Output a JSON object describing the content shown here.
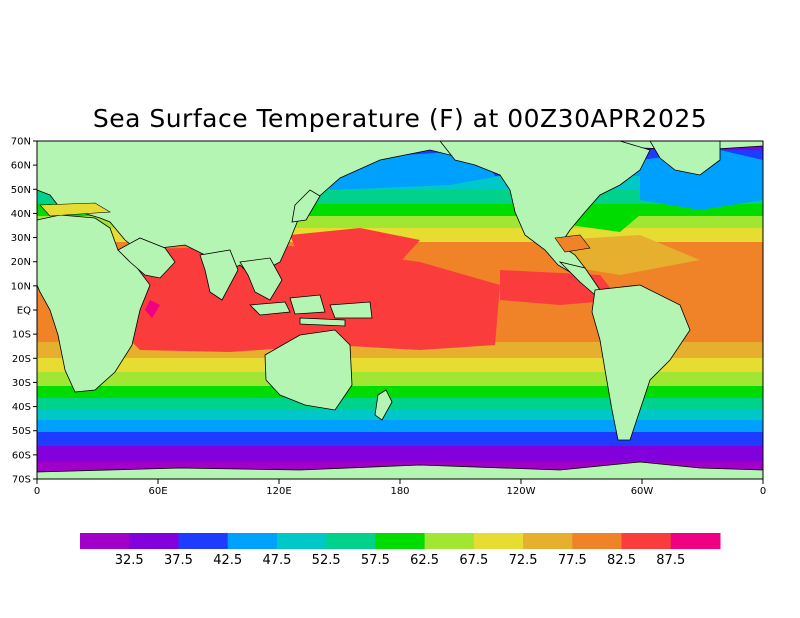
{
  "title": "Sea Surface Temperature (F) at 00Z30APR2025",
  "colors": {
    "land": "#b4f5b4",
    "border": "#000000",
    "levels": [
      "#a000c8",
      "#8200dc",
      "#1e3cff",
      "#00a0ff",
      "#00c8c8",
      "#00d28c",
      "#00dc00",
      "#a0e632",
      "#e6dc32",
      "#e6af2d",
      "#f08228",
      "#fa3c3c",
      "#f00082"
    ]
  },
  "lat_ticks": [
    "70N",
    "60N",
    "50N",
    "40N",
    "30N",
    "20N",
    "10N",
    "EQ",
    "10S",
    "20S",
    "30S",
    "40S",
    "50S",
    "60S",
    "70S"
  ],
  "lon_ticks": [
    "0",
    "60E",
    "120E",
    "180",
    "120W",
    "60W",
    "0"
  ],
  "colorbar": {
    "labels": [
      "32.5",
      "37.5",
      "42.5",
      "47.5",
      "52.5",
      "57.5",
      "62.5",
      "67.5",
      "72.5",
      "77.5",
      "82.5",
      "87.5"
    ]
  }
}
